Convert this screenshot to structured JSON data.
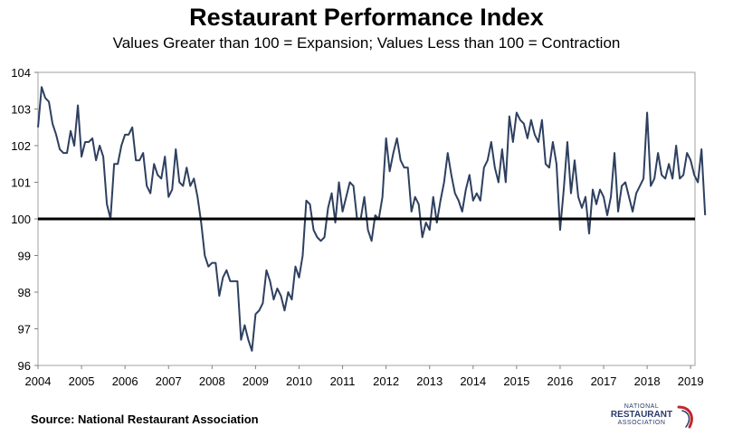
{
  "header": {
    "title": "Restaurant Performance Index",
    "subtitle": "Values Greater than 100 = Expansion; Values Less than 100 = Contraction"
  },
  "footer": {
    "source": "Source: National Restaurant Association"
  },
  "logo": {
    "line1": "NATIONAL",
    "line2": "RESTAURANT",
    "line3": "ASSOCIATION"
  },
  "colors": {
    "line": "#2e4060",
    "baseline": "#000000",
    "logo_red": "#c0282e",
    "logo_blue": "#2b3a6b"
  },
  "chart_data": {
    "type": "line",
    "title": "Restaurant Performance Index",
    "subtitle": "Values Greater than 100 = Expansion; Values Less than 100 = Contraction",
    "xlabel": "",
    "ylabel": "",
    "x_start_year": 2004,
    "x_tick_labels": [
      "2004",
      "2005",
      "2006",
      "2007",
      "2008",
      "2009",
      "2010",
      "2011",
      "2012",
      "2013",
      "2014",
      "2015",
      "2016",
      "2017",
      "2018",
      "2019"
    ],
    "y_tick_labels": [
      "96",
      "97",
      "98",
      "99",
      "100",
      "101",
      "102",
      "103",
      "104"
    ],
    "ylim": [
      96,
      104
    ],
    "xlim": [
      2004,
      2019.1
    ],
    "reference_line": 100,
    "grid": false,
    "series": [
      {
        "values": [
          102.5,
          103.6,
          103.3,
          103.2,
          102.6,
          102.3,
          101.9,
          101.8,
          101.8,
          102.4,
          102.0,
          103.1,
          101.7,
          102.1,
          102.1,
          102.2,
          101.6,
          102.0,
          101.7,
          100.4,
          100.0,
          101.5,
          101.5,
          102.0,
          102.3,
          102.3,
          102.5,
          101.6,
          101.6,
          101.8,
          100.9,
          100.7,
          101.5,
          101.2,
          101.1,
          101.7,
          100.6,
          100.8,
          101.9,
          101.0,
          100.9,
          101.4,
          100.9,
          101.1,
          100.6,
          99.9,
          99.0,
          98.7,
          98.8,
          98.8,
          97.9,
          98.4,
          98.6,
          98.3,
          98.3,
          98.3,
          96.7,
          97.1,
          96.7,
          96.4,
          97.4,
          97.5,
          97.7,
          98.6,
          98.3,
          97.8,
          98.1,
          97.9,
          97.5,
          98.0,
          97.8,
          98.7,
          98.4,
          99.0,
          100.5,
          100.4,
          99.7,
          99.5,
          99.4,
          99.5,
          100.3,
          100.7,
          99.9,
          101.0,
          100.2,
          100.6,
          101.0,
          100.9,
          100.0,
          100.0,
          100.6,
          99.7,
          99.4,
          100.1,
          100.0,
          100.6,
          102.2,
          101.3,
          101.8,
          102.2,
          101.6,
          101.4,
          101.4,
          100.2,
          100.6,
          100.4,
          99.5,
          99.9,
          99.7,
          100.6,
          99.9,
          100.5,
          101.0,
          101.8,
          101.2,
          100.7,
          100.5,
          100.2,
          100.8,
          101.2,
          100.5,
          100.7,
          100.5,
          101.4,
          101.6,
          102.1,
          101.4,
          101.0,
          101.9,
          101.0,
          102.8,
          102.1,
          102.9,
          102.7,
          102.6,
          102.2,
          102.7,
          102.3,
          102.1,
          102.7,
          101.5,
          101.4,
          102.1,
          101.5,
          99.7,
          100.8,
          102.1,
          100.7,
          101.6,
          100.6,
          100.3,
          100.6,
          99.6,
          100.8,
          100.4,
          100.8,
          100.6,
          100.1,
          100.6,
          101.8,
          100.2,
          100.9,
          101.0,
          100.6,
          100.2,
          100.7,
          100.9,
          101.1,
          102.9,
          100.9,
          101.1,
          101.8,
          101.2,
          101.1,
          101.5,
          101.1,
          102.0,
          101.1,
          101.2,
          101.8,
          101.6,
          101.2,
          101.0,
          101.9,
          100.1
        ]
      }
    ]
  }
}
